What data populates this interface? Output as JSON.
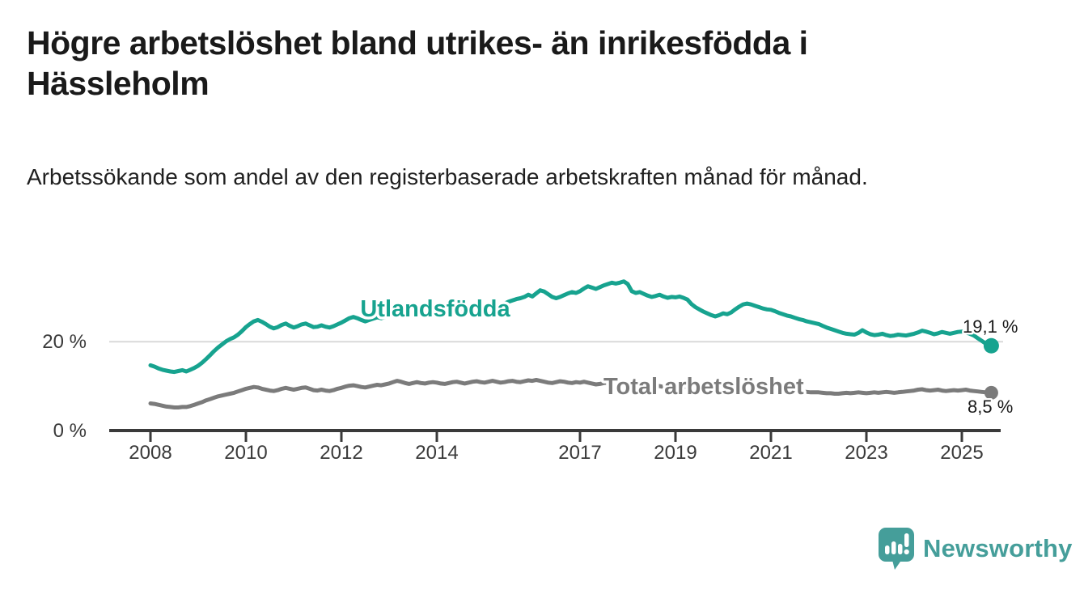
{
  "title": "Högre arbetslöshet bland utrikes- än inrikesfödda i Hässleholm",
  "subtitle": "Arbetssökande som andel av den registerbaserade arbetskraften månad för månad.",
  "branding": {
    "logo_text": "Newsworthy",
    "logo_icon": "bar-chart-speech-bubble-icon",
    "logo_color": "#459e9a"
  },
  "colors": {
    "series_utlandsfodda": "#17a38f",
    "series_total": "#7b7b7b",
    "axis": "#3a3a3a",
    "gridline": "#d9d9d9",
    "value_label": "#1a1a1a",
    "title": "#1a1a1a"
  },
  "chart_data": {
    "type": "line",
    "frequency": "monthly",
    "x_start": "2008-01",
    "x_end": "2025-08",
    "x_ticks": [
      2008,
      2010,
      2012,
      2014,
      2017,
      2019,
      2021,
      2023,
      2025
    ],
    "y_ticks": [
      {
        "value": 0,
        "label": "0 %"
      },
      {
        "value": 20,
        "label": "20 %"
      }
    ],
    "ylim": [
      0,
      36
    ],
    "grid": "single horizontal gridline at 20 %",
    "legend": "inline labels on lines, end values labelled",
    "series": [
      {
        "name": "Utlandsfödda",
        "color": "#17a38f",
        "end_label": "19,1 %",
        "end_value": 19.1,
        "values": [
          14.7,
          14.4,
          14.0,
          13.7,
          13.5,
          13.3,
          13.2,
          13.4,
          13.6,
          13.3,
          13.7,
          14.1,
          14.6,
          15.3,
          16.1,
          17.0,
          17.9,
          18.7,
          19.4,
          20.1,
          20.6,
          21.0,
          21.6,
          22.4,
          23.3,
          24.0,
          24.6,
          24.9,
          24.5,
          24.0,
          23.4,
          23.0,
          23.3,
          23.8,
          24.1,
          23.6,
          23.2,
          23.5,
          23.9,
          24.1,
          23.7,
          23.3,
          23.4,
          23.7,
          23.4,
          23.2,
          23.5,
          23.9,
          24.3,
          24.8,
          25.3,
          25.6,
          25.3,
          24.9,
          24.6,
          24.9,
          25.2,
          25.5,
          25.3,
          25.6,
          25.9,
          26.2,
          26.0,
          25.7,
          25.9,
          26.2,
          26.4,
          26.1,
          25.9,
          26.1,
          26.3,
          26.5,
          26.5,
          26.3,
          26.2,
          26.4,
          26.7,
          26.9,
          26.8,
          26.6,
          26.9,
          27.1,
          27.3,
          27.2,
          27.4,
          27.7,
          28.0,
          27.9,
          28.2,
          28.6,
          29.0,
          29.3,
          29.6,
          29.8,
          30.1,
          30.6,
          30.2,
          30.9,
          31.6,
          31.3,
          30.7,
          30.1,
          29.8,
          30.1,
          30.5,
          30.9,
          31.2,
          31.0,
          31.4,
          32.0,
          32.5,
          32.2,
          31.9,
          32.3,
          32.7,
          33.0,
          33.3,
          33.1,
          33.3,
          33.6,
          33.0,
          31.4,
          31.0,
          31.2,
          30.8,
          30.4,
          30.1,
          30.3,
          30.6,
          30.2,
          29.9,
          30.1,
          30.0,
          30.2,
          29.9,
          29.5,
          28.5,
          27.8,
          27.3,
          26.8,
          26.4,
          26.0,
          25.7,
          26.0,
          26.4,
          26.2,
          26.6,
          27.3,
          27.9,
          28.4,
          28.6,
          28.4,
          28.1,
          27.8,
          27.5,
          27.3,
          27.2,
          26.9,
          26.5,
          26.2,
          25.9,
          25.7,
          25.4,
          25.1,
          24.9,
          24.6,
          24.4,
          24.2,
          24.0,
          23.6,
          23.2,
          22.9,
          22.6,
          22.3,
          22.0,
          21.8,
          21.7,
          21.6,
          22.0,
          22.6,
          22.1,
          21.7,
          21.5,
          21.6,
          21.8,
          21.5,
          21.3,
          21.4,
          21.6,
          21.5,
          21.4,
          21.6,
          21.8,
          22.1,
          22.5,
          22.3,
          22.0,
          21.7,
          21.9,
          22.2,
          22.0,
          21.8,
          22.0,
          22.2,
          22.3,
          22.1,
          21.8,
          21.4,
          20.8,
          20.2,
          19.6,
          19.1
        ]
      },
      {
        "name": "Total arbetslöshet",
        "color": "#7b7b7b",
        "end_label": "8,5 %",
        "end_value": 8.5,
        "values": [
          6.1,
          6.0,
          5.8,
          5.6,
          5.4,
          5.3,
          5.2,
          5.2,
          5.3,
          5.3,
          5.5,
          5.8,
          6.1,
          6.4,
          6.8,
          7.1,
          7.4,
          7.7,
          7.9,
          8.1,
          8.3,
          8.5,
          8.8,
          9.1,
          9.4,
          9.6,
          9.8,
          9.7,
          9.4,
          9.2,
          9.0,
          8.9,
          9.1,
          9.4,
          9.6,
          9.4,
          9.2,
          9.4,
          9.6,
          9.7,
          9.4,
          9.1,
          9.0,
          9.2,
          9.0,
          8.9,
          9.1,
          9.4,
          9.6,
          9.9,
          10.1,
          10.2,
          10.0,
          9.8,
          9.7,
          9.9,
          10.1,
          10.3,
          10.2,
          10.4,
          10.6,
          10.9,
          11.2,
          11.0,
          10.7,
          10.5,
          10.7,
          10.9,
          10.7,
          10.6,
          10.8,
          10.9,
          10.8,
          10.6,
          10.5,
          10.7,
          10.9,
          11.0,
          10.8,
          10.6,
          10.8,
          11.0,
          11.1,
          10.9,
          10.8,
          11.0,
          11.2,
          11.0,
          10.8,
          10.9,
          11.1,
          11.2,
          11.0,
          10.9,
          11.1,
          11.3,
          11.2,
          11.4,
          11.2,
          11.0,
          10.8,
          10.7,
          10.9,
          11.1,
          11.0,
          10.8,
          10.7,
          10.9,
          10.8,
          11.0,
          10.8,
          10.6,
          10.4,
          10.5,
          10.7,
          10.8,
          10.6,
          10.4,
          10.3,
          10.4,
          10.3,
          10.1,
          10.0,
          10.1,
          9.9,
          9.8,
          9.9,
          10.1,
          10.0,
          9.8,
          9.7,
          9.8,
          9.9,
          10.0,
          9.8,
          9.7,
          9.5,
          9.4,
          9.5,
          9.7,
          9.6,
          9.4,
          9.3,
          9.5,
          9.7,
          9.8,
          10.0,
          10.3,
          10.5,
          10.7,
          10.8,
          10.6,
          10.4,
          10.2,
          10.1,
          10.0,
          9.8,
          9.6,
          9.4,
          9.2,
          9.0,
          8.9,
          8.8,
          8.8,
          8.7,
          8.7,
          8.6,
          8.6,
          8.6,
          8.5,
          8.4,
          8.4,
          8.3,
          8.3,
          8.4,
          8.5,
          8.4,
          8.5,
          8.6,
          8.5,
          8.4,
          8.5,
          8.6,
          8.5,
          8.6,
          8.7,
          8.6,
          8.5,
          8.6,
          8.7,
          8.8,
          8.9,
          9.0,
          9.2,
          9.3,
          9.1,
          9.0,
          9.1,
          9.2,
          9.0,
          8.9,
          9.0,
          9.1,
          9.0,
          9.1,
          9.2,
          9.0,
          8.9,
          8.8,
          8.7,
          8.6,
          8.5
        ]
      }
    ]
  }
}
